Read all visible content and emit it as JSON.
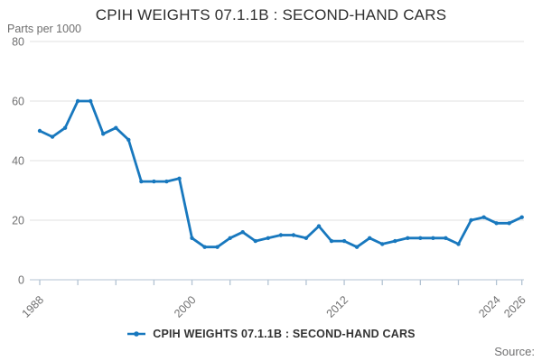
{
  "header": {
    "title": "CPIH WEIGHTS 07.1.1B : SECOND-HAND CARS",
    "units_label": "Parts per 1000"
  },
  "chart_data": {
    "type": "line",
    "title": "CPIH WEIGHTS 07.1.1B : SECOND-HAND CARS",
    "ylabel": "Parts per 1000",
    "xlabel": "",
    "x": [
      1988,
      1989,
      1990,
      1991,
      1992,
      1993,
      1994,
      1995,
      1996,
      1997,
      1998,
      1999,
      2000,
      2001,
      2002,
      2003,
      2004,
      2005,
      2006,
      2007,
      2008,
      2009,
      2010,
      2011,
      2012,
      2013,
      2014,
      2015,
      2016,
      2017,
      2018,
      2019,
      2020,
      2021,
      2022,
      2023,
      2024,
      2025,
      2026
    ],
    "values": [
      50,
      48,
      51,
      60,
      60,
      49,
      51,
      47,
      33,
      33,
      33,
      34,
      14,
      11,
      11,
      14,
      16,
      13,
      14,
      15,
      15,
      14,
      18,
      13,
      13,
      11,
      14,
      12,
      13,
      14,
      14,
      14,
      14,
      12,
      20,
      21,
      19,
      19,
      21
    ],
    "series": [
      {
        "name": "CPIH WEIGHTS 07.1.1B : SECOND-HAND CARS"
      }
    ],
    "ylim": [
      0,
      80
    ],
    "xlim": [
      1988,
      2026
    ],
    "yticks": [
      0,
      20,
      40,
      60,
      80
    ],
    "xticks_minor": [
      1988,
      1991,
      1994,
      1997,
      2000,
      2003,
      2006,
      2009,
      2012,
      2015,
      2018,
      2021,
      2024,
      2026
    ],
    "xticks_labeled": [
      1988,
      2000,
      2012,
      2024,
      2026
    ],
    "grid": "horizontal",
    "legend_position": "bottom",
    "marker": "dot"
  },
  "legend": {
    "label": "CPIH WEIGHTS 07.1.1B : SECOND-HAND CARS"
  },
  "footer": {
    "source_label": "Source:"
  },
  "colors": {
    "line": "#1878be",
    "gridline": "#e2e2e2",
    "axis": "#b3c3d3",
    "tick_label": "#707071",
    "title_text": "#2e2e2e",
    "legend_text": "#333333"
  }
}
